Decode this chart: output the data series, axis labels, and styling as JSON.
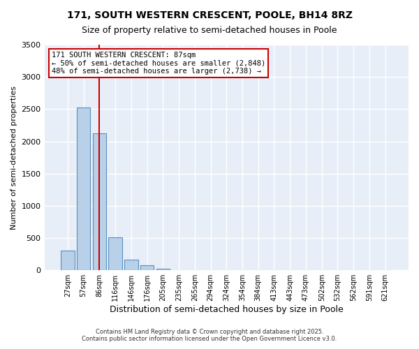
{
  "title_line1": "171, SOUTH WESTERN CRESCENT, POOLE, BH14 8RZ",
  "title_line2": "Size of property relative to semi-detached houses in Poole",
  "xlabel": "Distribution of semi-detached houses by size in Poole",
  "ylabel": "Number of semi-detached properties",
  "bins": [
    "27sqm",
    "57sqm",
    "86sqm",
    "116sqm",
    "146sqm",
    "176sqm",
    "205sqm",
    "235sqm",
    "265sqm",
    "294sqm",
    "324sqm",
    "354sqm",
    "384sqm",
    "413sqm",
    "443sqm",
    "473sqm",
    "502sqm",
    "532sqm",
    "562sqm",
    "591sqm",
    "621sqm"
  ],
  "values": [
    310,
    2530,
    2130,
    510,
    160,
    80,
    25,
    0,
    0,
    0,
    0,
    0,
    0,
    0,
    0,
    0,
    0,
    0,
    0,
    0,
    0
  ],
  "property_size_sqm": 87,
  "property_bin_index": 2,
  "annotation_title": "171 SOUTH WESTERN CRESCENT: 87sqm",
  "annotation_line2": "← 50% of semi-detached houses are smaller (2,848)",
  "annotation_line3": "48% of semi-detached houses are larger (2,738) →",
  "bar_color": "#b8d0e8",
  "bar_edge_color": "#5a8fc0",
  "vline_color": "#cc0000",
  "annotation_box_color": "#cc0000",
  "background_color": "#e8eef8",
  "grid_color": "#ffffff",
  "ylim": [
    0,
    3500
  ],
  "yticks": [
    0,
    500,
    1000,
    1500,
    2000,
    2500,
    3000,
    3500
  ],
  "footer_line1": "Contains HM Land Registry data © Crown copyright and database right 2025.",
  "footer_line2": "Contains public sector information licensed under the Open Government Licence v3.0."
}
